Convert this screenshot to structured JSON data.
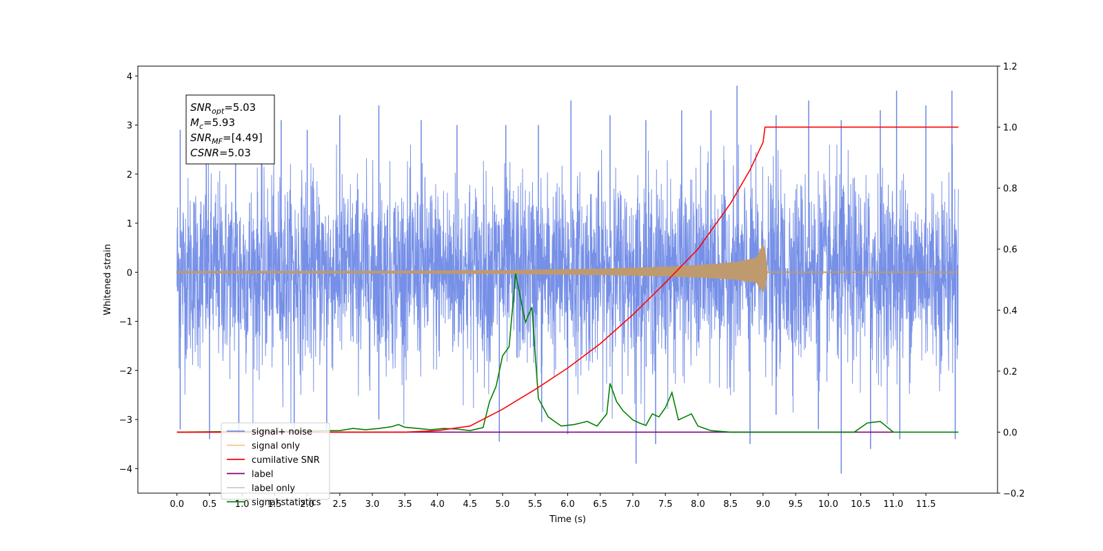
{
  "chart_data": {
    "type": "line",
    "title": "",
    "xlabel": "Time (s)",
    "ylabel": "Whitened strain",
    "xlim": [
      -0.6,
      12.6
    ],
    "ylim": [
      -4.5,
      4.2
    ],
    "y2lim": [
      -0.2,
      1.2
    ],
    "x_ticks": [
      "0.0",
      "0.5",
      "1.0",
      "1.5",
      "2.0",
      "2.5",
      "3.0",
      "3.5",
      "4.0",
      "4.5",
      "5.0",
      "5.5",
      "6.0",
      "6.5",
      "7.0",
      "7.5",
      "8.0",
      "8.5",
      "9.0",
      "9.5",
      "10.0",
      "10.5",
      "11.0",
      "11.5"
    ],
    "y_ticks": [
      "4",
      "3",
      "2",
      "1",
      "0",
      "−1",
      "−2",
      "−3",
      "−4"
    ],
    "y_ticks_values": [
      4,
      3,
      2,
      1,
      0,
      -1,
      -2,
      -3,
      -4
    ],
    "y2_ticks": [
      "1.2",
      "1.0",
      "0.8",
      "0.6",
      "0.4",
      "0.2",
      "0.0",
      "−0.2"
    ],
    "y2_ticks_values": [
      1.2,
      1.0,
      0.8,
      0.6,
      0.4,
      0.2,
      0.0,
      -0.2
    ],
    "grid": false,
    "legend_position": "bottom-left",
    "annotation": {
      "lines": [
        {
          "base": "SNR",
          "sub": "opt",
          "rest": "=5.03"
        },
        {
          "base": "M",
          "sub": "c",
          "rest": "=5.93"
        },
        {
          "base": "SNR",
          "sub": "MF",
          "rest": "=[4.49]"
        },
        {
          "base": "CSNR",
          "sub": "",
          "rest": "=5.03"
        }
      ]
    },
    "series": [
      {
        "name": "signal+ noise",
        "axis": "left",
        "color": "#6b87e5",
        "description_values": {
          "x_range": [
            0.0,
            12.0
          ],
          "envelope_min": -4.1,
          "envelope_max": 3.8
        },
        "spikes_up": [
          [
            0.05,
            2.9
          ],
          [
            0.45,
            2.9
          ],
          [
            0.9,
            2.9
          ],
          [
            1.3,
            3.0
          ],
          [
            1.6,
            3.1
          ],
          [
            2.0,
            2.9
          ],
          [
            2.5,
            3.2
          ],
          [
            3.1,
            3.4
          ],
          [
            3.75,
            3.1
          ],
          [
            4.3,
            3.0
          ],
          [
            5.05,
            3.0
          ],
          [
            5.55,
            3.0
          ],
          [
            6.05,
            3.5
          ],
          [
            6.65,
            3.2
          ],
          [
            7.2,
            3.1
          ],
          [
            7.75,
            3.3
          ],
          [
            8.2,
            3.3
          ],
          [
            8.6,
            3.8
          ],
          [
            9.2,
            3.2
          ],
          [
            9.7,
            3.5
          ],
          [
            10.2,
            3.1
          ],
          [
            10.8,
            3.3
          ],
          [
            11.05,
            3.7
          ],
          [
            11.5,
            3.4
          ],
          [
            11.9,
            3.7
          ]
        ],
        "spikes_down": [
          [
            0.05,
            -3.2
          ],
          [
            0.5,
            -3.4
          ],
          [
            0.95,
            -3.3
          ],
          [
            1.8,
            -3.2
          ],
          [
            2.3,
            -3.2
          ],
          [
            3.1,
            -3.0
          ],
          [
            4.95,
            -3.45
          ],
          [
            5.6,
            -3.05
          ],
          [
            6.0,
            -3.3
          ],
          [
            7.05,
            -3.9
          ],
          [
            7.35,
            -3.5
          ],
          [
            8.8,
            -3.5
          ],
          [
            9.2,
            -2.9
          ],
          [
            9.85,
            -3.2
          ],
          [
            10.2,
            -4.1
          ],
          [
            10.65,
            -3.6
          ],
          [
            11.1,
            -3.4
          ],
          [
            11.95,
            -3.4
          ]
        ]
      },
      {
        "name": "signal only",
        "axis": "left",
        "color": "#f5b25a",
        "envelope": {
          "x": [
            0.0,
            3.0,
            5.0,
            6.5,
            7.5,
            8.2,
            8.6,
            8.9,
            9.02,
            9.05,
            12.0
          ],
          "amp": [
            0.01,
            0.015,
            0.03,
            0.06,
            0.1,
            0.15,
            0.2,
            0.28,
            0.6,
            0.0,
            0.0
          ]
        }
      },
      {
        "name": "cumilative SNR",
        "axis": "right",
        "color": "#ff0000",
        "x": [
          0.0,
          3.0,
          3.5,
          4.0,
          4.5,
          5.0,
          5.5,
          6.0,
          6.5,
          7.0,
          7.5,
          8.0,
          8.5,
          8.8,
          9.0,
          9.03,
          9.05,
          12.0
        ],
        "y": [
          0.0,
          0.0,
          0.0,
          0.005,
          0.02,
          0.075,
          0.14,
          0.21,
          0.29,
          0.385,
          0.49,
          0.6,
          0.75,
          0.86,
          0.95,
          1.0,
          1.0,
          1.0
        ]
      },
      {
        "name": "label",
        "axis": "right",
        "color": "#800080",
        "x": [
          0.0,
          11.0
        ],
        "y": [
          0.0,
          0.0
        ]
      },
      {
        "name": "label only",
        "axis": "right",
        "color": "#cccccc",
        "x": [],
        "y": []
      },
      {
        "name": "signal statistics",
        "axis": "right",
        "color": "#008000",
        "x": [
          0.0,
          2.5,
          2.7,
          2.9,
          3.1,
          3.3,
          3.4,
          3.5,
          3.7,
          3.9,
          4.1,
          4.3,
          4.5,
          4.7,
          4.8,
          4.9,
          5.0,
          5.1,
          5.2,
          5.35,
          5.45,
          5.55,
          5.7,
          5.9,
          6.1,
          6.2,
          6.3,
          6.45,
          6.6,
          6.65,
          6.75,
          6.85,
          7.0,
          7.1,
          7.2,
          7.3,
          7.4,
          7.5,
          7.6,
          7.7,
          7.8,
          7.9,
          8.0,
          8.2,
          8.5,
          8.8,
          9.0,
          10.4,
          10.6,
          10.8,
          11.0,
          12.0
        ],
        "y": [
          0.0,
          0.005,
          0.012,
          0.008,
          0.012,
          0.018,
          0.025,
          0.016,
          0.012,
          0.008,
          0.012,
          0.01,
          0.005,
          0.015,
          0.1,
          0.15,
          0.25,
          0.28,
          0.52,
          0.36,
          0.41,
          0.11,
          0.05,
          0.02,
          0.025,
          0.03,
          0.035,
          0.02,
          0.06,
          0.16,
          0.1,
          0.07,
          0.04,
          0.03,
          0.022,
          0.06,
          0.05,
          0.08,
          0.13,
          0.04,
          0.05,
          0.06,
          0.02,
          0.005,
          0.0,
          0.0,
          0.0,
          0.0,
          0.03,
          0.035,
          0.0,
          0.0
        ]
      }
    ]
  }
}
